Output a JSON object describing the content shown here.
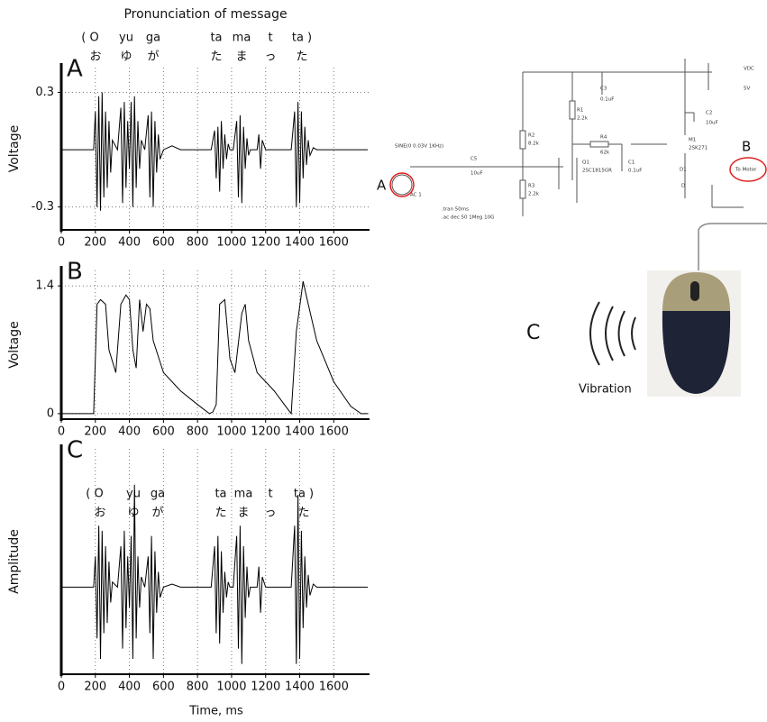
{
  "chart_data": [
    {
      "type": "line",
      "panel": "A",
      "title": "Pronunciation of message",
      "ylabel": "Voltage",
      "romaji": [
        "( O",
        "yu",
        "ga",
        "ta",
        "ma",
        "t",
        "ta )"
      ],
      "kana": [
        "お",
        "ゆ",
        "が",
        "た",
        "ま",
        "っ",
        "た"
      ],
      "xlim": [
        0,
        1810
      ],
      "xticks": [
        0,
        200,
        400,
        600,
        800,
        1000,
        1200,
        1400,
        1600
      ],
      "ylim": [
        -0.42,
        0.43
      ],
      "yticks": [
        -0.3,
        0.3
      ],
      "grid": true,
      "color": "#000",
      "x": [
        0,
        190,
        200,
        210,
        220,
        230,
        240,
        250,
        260,
        270,
        280,
        290,
        300,
        330,
        350,
        360,
        370,
        380,
        390,
        400,
        410,
        420,
        430,
        440,
        450,
        460,
        470,
        490,
        510,
        520,
        530,
        540,
        550,
        560,
        570,
        580,
        600,
        650,
        700,
        880,
        900,
        910,
        920,
        930,
        940,
        950,
        960,
        970,
        980,
        990,
        1010,
        1030,
        1040,
        1050,
        1060,
        1070,
        1080,
        1090,
        1100,
        1110,
        1150,
        1160,
        1170,
        1180,
        1200,
        1350,
        1370,
        1380,
        1390,
        1400,
        1410,
        1420,
        1430,
        1440,
        1450,
        1460,
        1480,
        1500,
        1800
      ],
      "values": [
        0,
        0,
        0.2,
        -0.3,
        0.28,
        -0.32,
        0.3,
        -0.25,
        0.2,
        -0.2,
        0.15,
        -0.12,
        0.05,
        0,
        0.22,
        -0.28,
        0.25,
        -0.2,
        0.15,
        -0.1,
        0.25,
        -0.3,
        0.28,
        -0.2,
        0.15,
        -0.1,
        0.05,
        0,
        0.18,
        -0.25,
        0.2,
        -0.3,
        0.15,
        -0.12,
        0.08,
        -0.05,
        0,
        0.02,
        0,
        0,
        0.1,
        -0.15,
        0.12,
        -0.22,
        0.15,
        -0.1,
        0.08,
        -0.05,
        0.03,
        0,
        0,
        0.15,
        -0.25,
        0.18,
        -0.28,
        0.12,
        -0.1,
        0.06,
        -0.03,
        0,
        0,
        0.08,
        -0.1,
        0.05,
        0,
        0,
        0.2,
        -0.3,
        0.25,
        -0.28,
        0.2,
        -0.15,
        0.12,
        -0.08,
        0.05,
        -0.03,
        0.01,
        0,
        0
      ]
    },
    {
      "type": "line",
      "panel": "B",
      "ylabel": "Voltage",
      "xlim": [
        0,
        1810
      ],
      "xticks": [
        0,
        200,
        400,
        600,
        800,
        1000,
        1200,
        1400,
        1600
      ],
      "ylim": [
        -0.06,
        1.57
      ],
      "yticks": [
        0,
        1.4
      ],
      "grid": true,
      "color": "#000",
      "x": [
        0,
        190,
        210,
        230,
        260,
        280,
        320,
        350,
        380,
        400,
        420,
        440,
        460,
        480,
        500,
        520,
        540,
        600,
        700,
        800,
        870,
        890,
        910,
        930,
        960,
        990,
        1020,
        1060,
        1080,
        1100,
        1150,
        1250,
        1330,
        1350,
        1380,
        1420,
        1450,
        1500,
        1600,
        1700,
        1760,
        1800
      ],
      "values": [
        0,
        0,
        1.2,
        1.25,
        1.2,
        0.7,
        0.45,
        1.2,
        1.3,
        1.25,
        0.7,
        0.5,
        1.25,
        0.9,
        1.2,
        1.15,
        0.8,
        0.45,
        0.25,
        0.1,
        0,
        0.02,
        0.1,
        1.2,
        1.25,
        0.6,
        0.45,
        1.1,
        1.2,
        0.8,
        0.45,
        0.25,
        0.05,
        0,
        0.9,
        1.45,
        1.2,
        0.8,
        0.35,
        0.08,
        0,
        0
      ]
    },
    {
      "type": "line",
      "panel": "C",
      "ylabel": "Amplitude",
      "xlabel": "Time, ms",
      "romaji": [
        "( O",
        "yu",
        "ga",
        "ta",
        "ma",
        "t",
        "ta )"
      ],
      "kana": [
        "お",
        "ゆ",
        "が",
        "た",
        "ま",
        "っ",
        "た"
      ],
      "xlim": [
        0,
        1810
      ],
      "xticks": [
        0,
        200,
        400,
        600,
        800,
        1000,
        1200,
        1400,
        1600
      ],
      "ylim": [
        -0.85,
        1.35
      ],
      "grid": true,
      "color": "#000",
      "x": [
        0,
        190,
        200,
        210,
        220,
        230,
        240,
        250,
        260,
        270,
        280,
        290,
        300,
        330,
        350,
        360,
        370,
        380,
        390,
        400,
        410,
        420,
        430,
        440,
        450,
        460,
        470,
        490,
        510,
        520,
        530,
        540,
        550,
        560,
        570,
        580,
        600,
        650,
        700,
        880,
        900,
        910,
        920,
        930,
        940,
        950,
        960,
        970,
        980,
        990,
        1010,
        1030,
        1040,
        1050,
        1060,
        1070,
        1080,
        1090,
        1100,
        1110,
        1150,
        1160,
        1170,
        1180,
        1200,
        1350,
        1370,
        1380,
        1390,
        1400,
        1410,
        1420,
        1430,
        1440,
        1450,
        1460,
        1480,
        1500,
        1800
      ],
      "values": [
        0,
        0,
        0.3,
        -0.5,
        0.6,
        -0.7,
        0.55,
        -0.45,
        0.4,
        -0.35,
        0.25,
        -0.15,
        0.05,
        0,
        0.4,
        -0.6,
        0.55,
        -0.4,
        0.3,
        -0.2,
        0.5,
        -0.7,
        1.0,
        -0.5,
        0.3,
        -0.2,
        0.1,
        0,
        0.3,
        -0.45,
        0.5,
        -0.7,
        0.35,
        -0.25,
        0.15,
        -0.1,
        0,
        0.03,
        0,
        0,
        0.4,
        -0.45,
        0.5,
        -0.55,
        0.35,
        -0.25,
        0.15,
        -0.1,
        0.05,
        0,
        0,
        0.5,
        -0.6,
        0.6,
        -0.75,
        0.4,
        -0.3,
        0.2,
        -0.1,
        0,
        0,
        0.2,
        -0.25,
        0.1,
        0,
        0,
        0.6,
        -0.75,
        0.9,
        -0.7,
        0.55,
        -0.4,
        0.3,
        -0.2,
        0.12,
        -0.08,
        0.03,
        0,
        0
      ]
    }
  ],
  "diagram": {
    "label_a": "A",
    "label_b": "B",
    "label_c": "C",
    "vibration": "Vibration",
    "source": "SINE(0 0.03V 1KHz)",
    "ac": "AC 1",
    "tran": ".tran 50ms",
    "acdec": ".ac dec 50 1Meg 10G",
    "c5": "C5",
    "c5v": "10uF",
    "r2": "R2",
    "r2v": "8.2k",
    "r3": "R3",
    "r3v": "2.2k",
    "q1": "Q1",
    "q1v": "2SC1815GR",
    "r1": "R1",
    "r1v": "2.2k",
    "c3": "C3",
    "c3v": "0.1uF",
    "r4": "R4",
    "r4v": "62k",
    "c1": "C1",
    "c1v": "0.1uF",
    "m1": "M1",
    "m1v": "2SK271",
    "c2": "C2",
    "c2v": "10uF",
    "vdc": "VDC",
    "vdcv": "5V",
    "d1": "D1",
    "d1v": "D",
    "motor": "To Motor"
  }
}
